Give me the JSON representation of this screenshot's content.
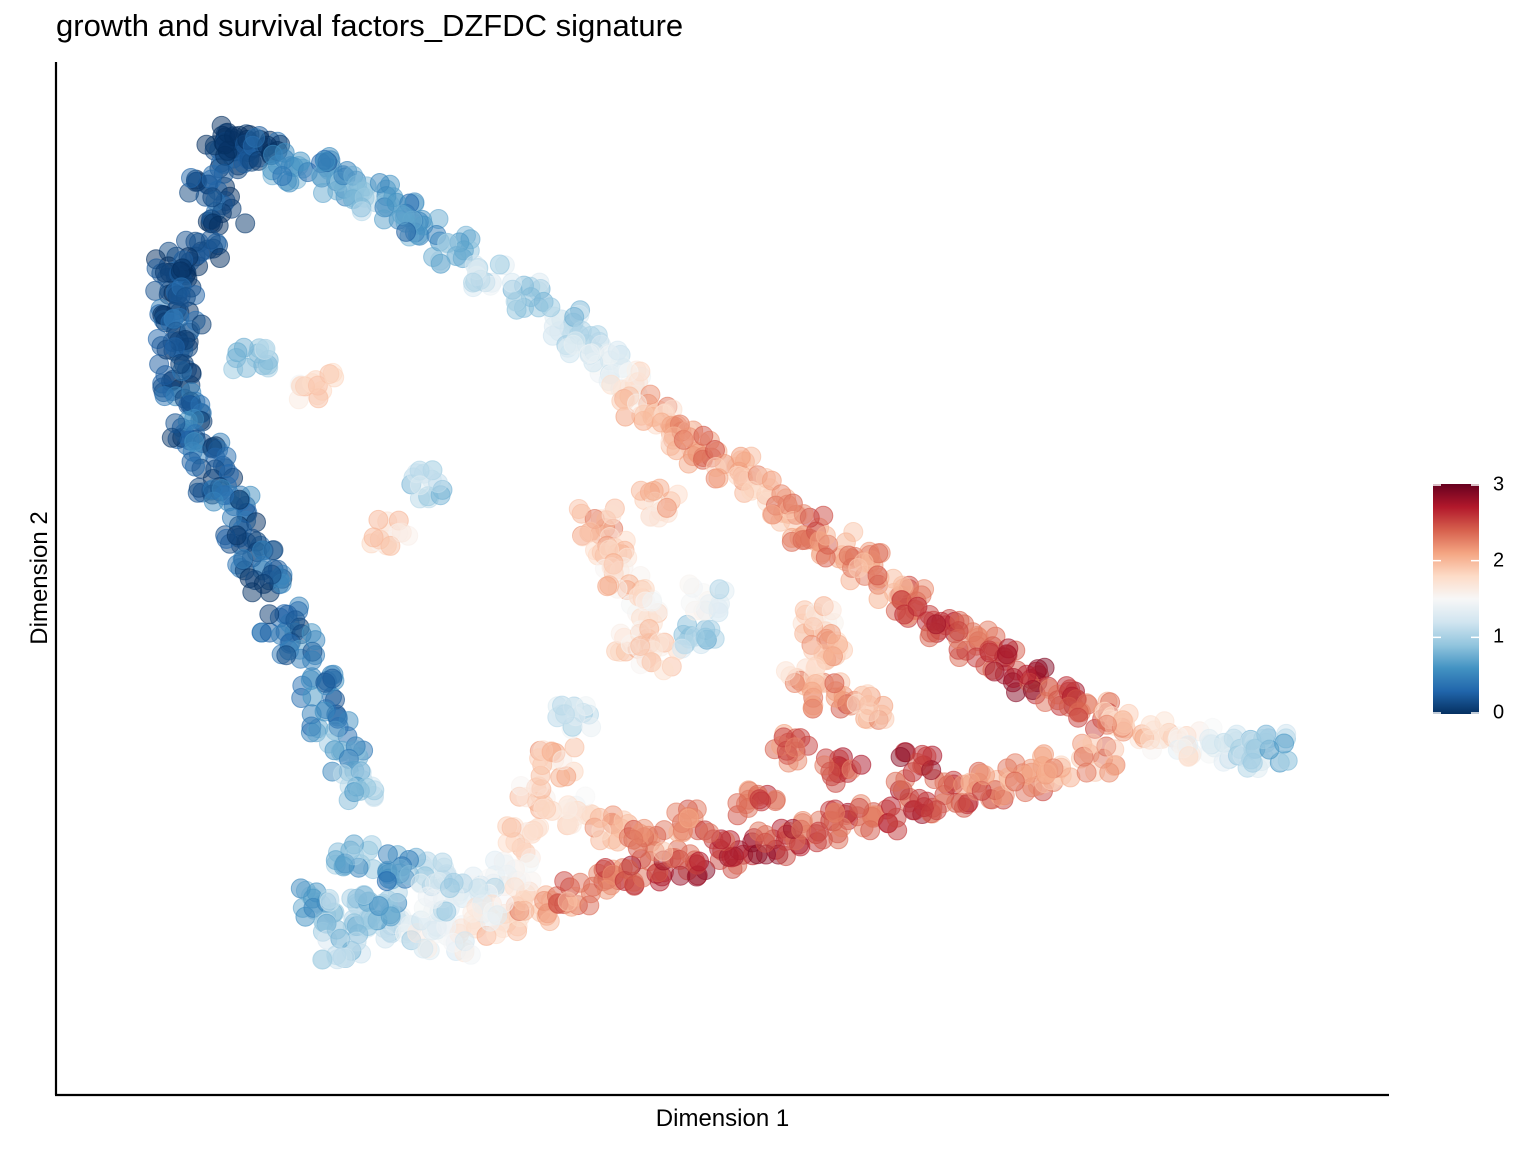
{
  "chart_data": {
    "type": "scatter",
    "title": "growth and survival factors_DZFDC signature",
    "xlabel": "Dimension 1",
    "ylabel": "Dimension 2",
    "x_ticks_shown": false,
    "y_ticks_shown": false,
    "grid": false,
    "legend": {
      "type": "colorbar",
      "placement": "right",
      "range": [
        0,
        3
      ],
      "ticks": [
        "0",
        "1",
        "2",
        "3"
      ],
      "colors": [
        "#053061",
        "#2166ac",
        "#4393c3",
        "#92c5de",
        "#d1e5f0",
        "#f7f7f7",
        "#fddbc7",
        "#f4a582",
        "#d6604d",
        "#b2182b",
        "#67001f"
      ]
    },
    "point_opacity": 0.5,
    "xlim": [
      0,
      100
    ],
    "ylim": [
      0,
      100
    ],
    "anchors": [
      [
        9.5,
        94,
        0.1
      ],
      [
        10,
        96,
        0.0
      ],
      [
        11,
        95,
        0.0
      ],
      [
        12.5,
        94.5,
        0.1
      ],
      [
        8,
        91,
        0.1
      ],
      [
        9.5,
        88.5,
        0.1
      ],
      [
        7.5,
        84,
        0.0
      ],
      [
        5,
        83,
        0.1
      ],
      [
        4.5,
        81,
        0.1
      ],
      [
        5.5,
        79,
        0.2
      ],
      [
        6,
        76,
        0.2
      ],
      [
        5,
        74,
        0.2
      ],
      [
        5.5,
        71,
        0.2
      ],
      [
        6,
        68,
        0.3
      ],
      [
        6.5,
        65.5,
        0.3
      ],
      [
        8,
        63,
        0.3
      ],
      [
        8.5,
        60.5,
        0.2
      ],
      [
        10,
        58,
        0.3
      ],
      [
        11,
        55,
        0.2
      ],
      [
        12,
        52.5,
        0.3
      ],
      [
        13,
        50,
        0.3
      ],
      [
        14,
        46,
        0.3
      ],
      [
        15.5,
        43,
        0.4
      ],
      [
        17,
        39,
        0.4
      ],
      [
        18,
        35,
        0.5
      ],
      [
        19.5,
        31.5,
        0.7
      ],
      [
        20.5,
        28.5,
        0.9
      ],
      [
        14.5,
        93,
        0.6
      ],
      [
        17,
        92.5,
        0.5
      ],
      [
        19,
        91.5,
        0.7
      ],
      [
        21.5,
        90,
        0.8
      ],
      [
        24,
        88.5,
        0.6
      ],
      [
        25.5,
        86.5,
        0.5
      ],
      [
        28,
        84.5,
        0.9
      ],
      [
        31,
        82,
        1.2
      ],
      [
        34,
        79.5,
        1.0
      ],
      [
        37,
        77,
        1.0
      ],
      [
        39,
        74.5,
        1.1
      ],
      [
        40.5,
        72.5,
        1.3
      ],
      [
        42,
        70.5,
        1.6
      ],
      [
        43.5,
        68.5,
        1.9
      ],
      [
        45,
        66.5,
        2.0
      ],
      [
        46.5,
        65,
        2.0
      ],
      [
        48.5,
        63.5,
        2.2
      ],
      [
        51,
        61.5,
        2.0
      ],
      [
        53,
        59.5,
        2.0
      ],
      [
        55,
        57.5,
        2.1
      ],
      [
        57,
        55.5,
        2.3
      ],
      [
        59.5,
        53.5,
        2.2
      ],
      [
        62,
        51.5,
        2.1
      ],
      [
        64,
        49.5,
        2.2
      ],
      [
        66,
        47.5,
        2.4
      ],
      [
        68.5,
        45.5,
        2.5
      ],
      [
        71,
        43.5,
        2.4
      ],
      [
        73,
        41.5,
        2.6
      ],
      [
        75.5,
        39.5,
        2.6
      ],
      [
        78,
        37.5,
        2.5
      ],
      [
        80.5,
        36,
        2.3
      ],
      [
        83,
        35,
        2.0
      ],
      [
        86,
        33.8,
        1.8
      ],
      [
        89,
        33,
        1.6
      ],
      [
        91.5,
        32.5,
        1.3
      ],
      [
        93.5,
        32,
        1.1
      ],
      [
        95,
        32.5,
        0.9
      ],
      [
        40,
        56,
        2.0
      ],
      [
        41,
        53,
        1.9
      ],
      [
        42,
        50.5,
        1.8
      ],
      [
        44,
        47.5,
        1.7
      ],
      [
        43,
        44,
        1.8
      ],
      [
        45,
        42,
        1.7
      ],
      [
        58,
        46,
        1.8
      ],
      [
        59,
        43,
        2.0
      ],
      [
        57,
        40,
        2.0
      ],
      [
        59,
        38,
        2.2
      ],
      [
        62,
        37,
        2.0
      ],
      [
        56,
        32.5,
        2.4
      ],
      [
        17,
        16.5,
        0.8
      ],
      [
        19,
        15.5,
        0.9
      ],
      [
        21.5,
        14.5,
        1.0
      ],
      [
        23.5,
        14,
        1.2
      ],
      [
        26.5,
        13,
        1.4
      ],
      [
        29,
        12.5,
        1.5
      ],
      [
        32,
        14.5,
        1.8
      ],
      [
        35,
        16,
        2.0
      ],
      [
        38,
        17.5,
        2.2
      ],
      [
        41,
        18.5,
        2.4
      ],
      [
        44,
        19.5,
        2.5
      ],
      [
        47.5,
        20.5,
        2.6
      ],
      [
        51,
        21.5,
        2.6
      ],
      [
        54,
        22.5,
        2.6
      ],
      [
        57,
        23.5,
        2.5
      ],
      [
        60,
        24.5,
        2.5
      ],
      [
        63,
        25.5,
        2.4
      ],
      [
        66,
        26.5,
        2.5
      ],
      [
        69,
        27.5,
        2.4
      ],
      [
        72,
        28.5,
        2.3
      ],
      [
        75,
        29.5,
        2.2
      ],
      [
        78,
        30.5,
        2.1
      ],
      [
        81,
        31.5,
        2.1
      ],
      [
        34,
        23,
        1.7
      ],
      [
        35,
        27,
        1.8
      ],
      [
        36.5,
        31,
        1.9
      ],
      [
        38,
        26,
        1.7
      ],
      [
        33,
        19.5,
        1.5
      ],
      [
        30,
        18,
        1.3
      ],
      [
        26,
        19.5,
        1.0
      ],
      [
        22,
        16,
        0.8
      ],
      [
        19,
        12,
        1.0
      ],
      [
        20,
        21,
        0.7
      ],
      [
        23,
        20,
        0.6
      ],
      [
        27,
        17,
        1.2
      ],
      [
        31,
        16,
        1.5
      ],
      [
        41,
        24,
        2.0
      ],
      [
        44,
        23,
        2.2
      ],
      [
        48,
        25,
        2.3
      ],
      [
        53,
        27,
        2.4
      ],
      [
        60,
        30,
        2.5
      ],
      [
        66,
        30.5,
        2.6
      ],
      [
        23,
        55,
        1.8
      ],
      [
        26,
        60,
        1.0
      ],
      [
        45,
        58,
        1.9
      ],
      [
        48,
        44,
        1.0
      ],
      [
        49,
        48,
        1.3
      ],
      [
        38,
        35.5,
        1.2
      ],
      [
        17,
        70,
        1.7
      ],
      [
        11.5,
        73,
        0.9
      ]
    ]
  }
}
